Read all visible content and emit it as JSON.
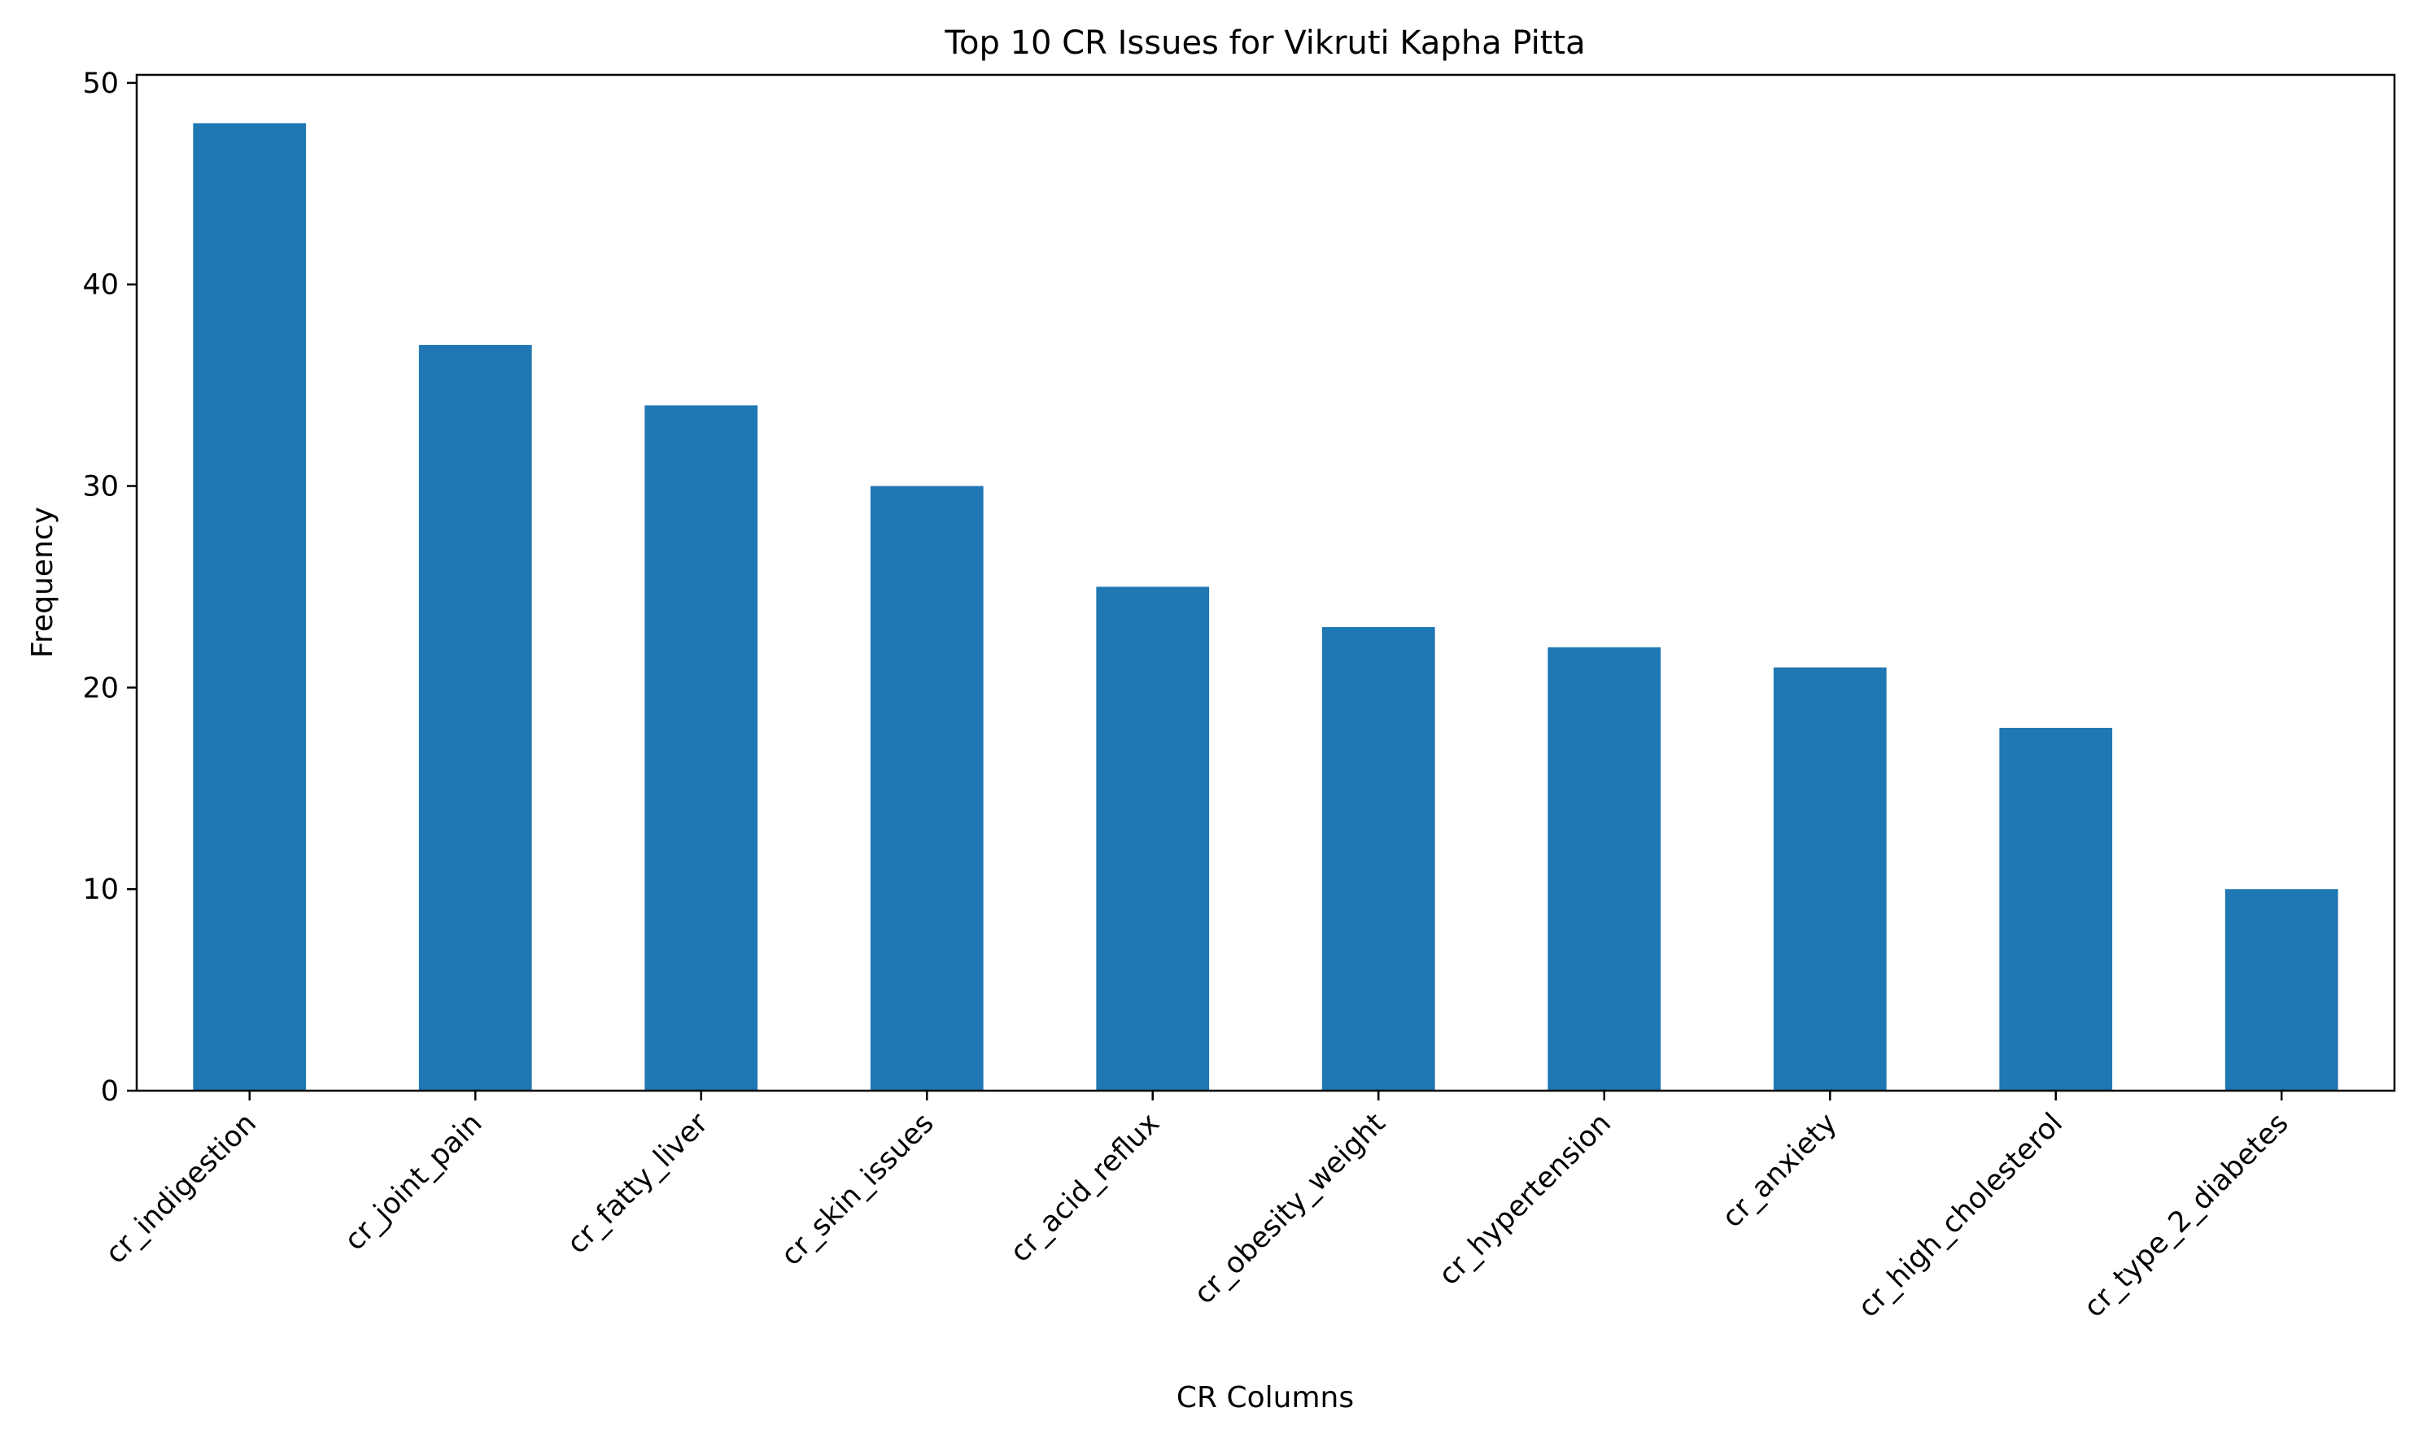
{
  "chart_data": {
    "type": "bar",
    "title": "Top 10 CR Issues for Vikruti Kapha Pitta",
    "xlabel": "CR Columns",
    "ylabel": "Frequency",
    "categories": [
      "cr_indigestion",
      "cr_joint_pain",
      "cr_fatty_liver",
      "cr_skin_issues",
      "cr_acid_reflux",
      "cr_obesity_weight",
      "cr_hypertension",
      "cr_anxiety",
      "cr_high_cholesterol",
      "cr_type_2_diabetes"
    ],
    "values": [
      48,
      37,
      34,
      30,
      25,
      23,
      22,
      21,
      18,
      10
    ],
    "ylim": [
      0,
      50.4
    ],
    "yticks": [
      0,
      10,
      20,
      30,
      40,
      50
    ],
    "grid": false,
    "legend": "none",
    "bar_color": "#1f77b4"
  }
}
